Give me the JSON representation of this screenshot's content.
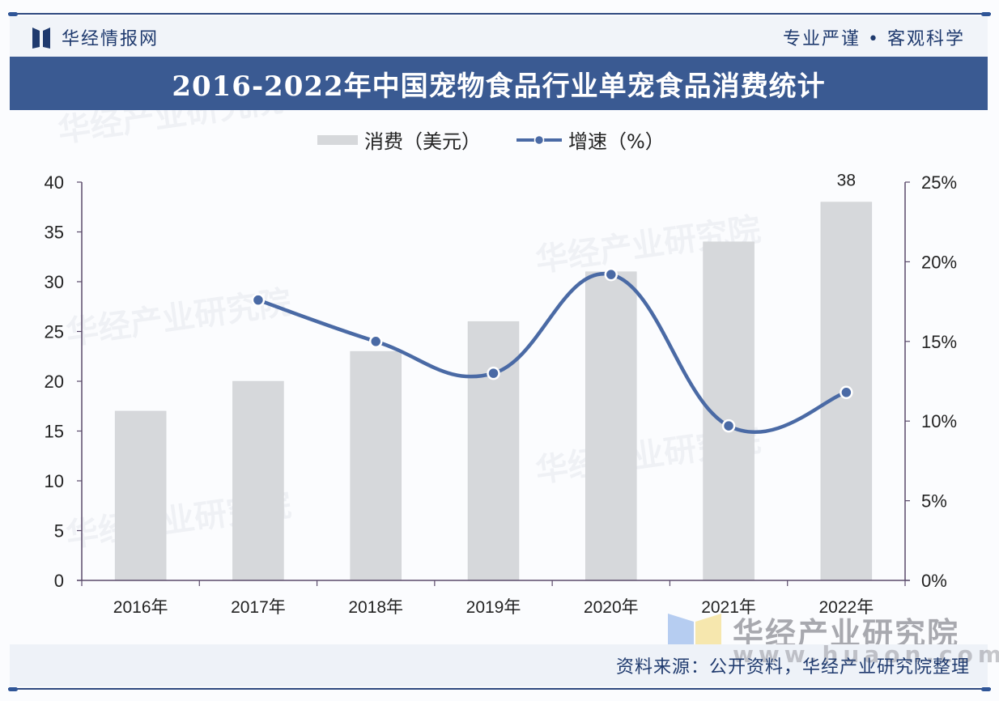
{
  "header": {
    "brand_name": "华经情报网",
    "slogan": "专业严谨 • 客观科学",
    "title": "2016-2022年中国宠物食品行业单宠食品消费统计"
  },
  "legend": {
    "bar_label": "消费（美元）",
    "line_label": "增速（%）"
  },
  "footer": {
    "source": "资料来源：公开资料，华经产业研究院整理",
    "watermark_name": "华经产业研究院",
    "watermark_url": "www.huaon.com"
  },
  "colors": {
    "title_bar": "#3a5a92",
    "bar_fill": "#d6d8db",
    "line": "#4a6aa5",
    "axis": "#5a4a6a",
    "brand_text": "#1f3a6e"
  },
  "chart_data": {
    "type": "bar+line",
    "title": "2016-2022年中国宠物食品行业单宠食品消费统计",
    "categories": [
      "2016年",
      "2017年",
      "2018年",
      "2019年",
      "2020年",
      "2021年",
      "2022年"
    ],
    "series": [
      {
        "name": "消费（美元）",
        "type": "bar",
        "axis": "left",
        "values": [
          17,
          20,
          23,
          26,
          31,
          34,
          38
        ]
      },
      {
        "name": "增速（%）",
        "type": "line",
        "axis": "right",
        "values": [
          null,
          17.6,
          15.0,
          13.0,
          19.2,
          9.7,
          11.8
        ]
      }
    ],
    "data_labels": [
      {
        "category": "2022年",
        "series": "消费（美元）",
        "text": "38"
      }
    ],
    "left_axis": {
      "ylim": [
        0,
        40
      ],
      "ticks": [
        "0",
        "5",
        "10",
        "15",
        "20",
        "25",
        "30",
        "35",
        "40"
      ]
    },
    "right_axis": {
      "ylim": [
        0,
        25
      ],
      "ticks": [
        "0%",
        "5%",
        "10%",
        "15%",
        "20%",
        "25%"
      ]
    },
    "xlabel": "",
    "ylabel": "",
    "grid": false,
    "legend_position": "top"
  }
}
